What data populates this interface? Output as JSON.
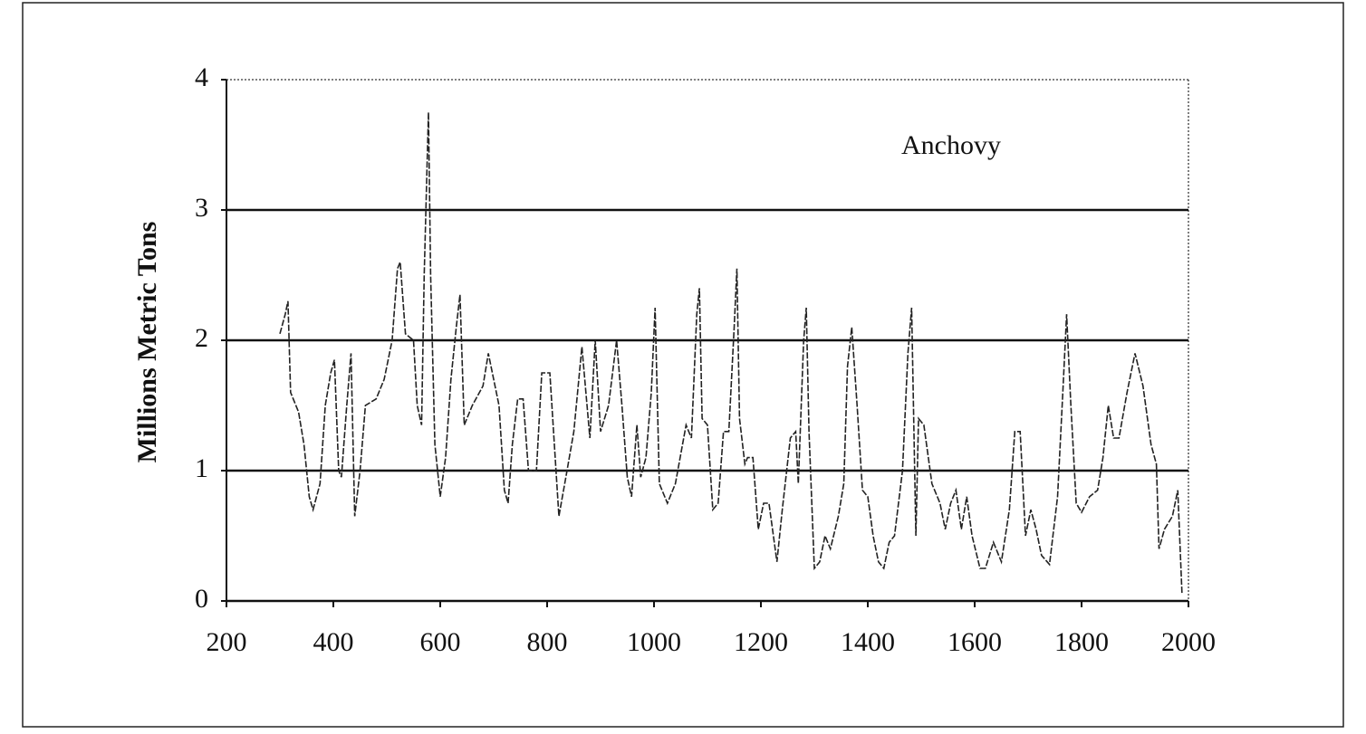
{
  "chart_data": {
    "type": "line",
    "ylabel": "Millions Metric Tons",
    "annotation": "Anchovy",
    "x": [
      300,
      310,
      315,
      320,
      335,
      345,
      355,
      362,
      375,
      385,
      395,
      402,
      410,
      415,
      425,
      433,
      440,
      450,
      460,
      480,
      495,
      510,
      520,
      525,
      535,
      550,
      557,
      565,
      570,
      575,
      578,
      582,
      590,
      600,
      610,
      620,
      630,
      637,
      645,
      660,
      680,
      690,
      700,
      710,
      720,
      727,
      735,
      745,
      755,
      765,
      780,
      790,
      805,
      815,
      822,
      835,
      850,
      865,
      880,
      890,
      900,
      915,
      930,
      940,
      950,
      958,
      968,
      975,
      985,
      995,
      1002,
      1010,
      1025,
      1040,
      1060,
      1070,
      1080,
      1085,
      1090,
      1100,
      1110,
      1120,
      1130,
      1140,
      1150,
      1155,
      1160,
      1170,
      1175,
      1185,
      1195,
      1205,
      1215,
      1230,
      1240,
      1255,
      1265,
      1270,
      1280,
      1285,
      1290,
      1300,
      1310,
      1320,
      1330,
      1345,
      1355,
      1362,
      1370,
      1380,
      1390,
      1400,
      1410,
      1420,
      1430,
      1440,
      1450,
      1465,
      1475,
      1482,
      1490,
      1495,
      1505,
      1520,
      1535,
      1545,
      1555,
      1565,
      1575,
      1585,
      1595,
      1610,
      1620,
      1635,
      1650,
      1665,
      1675,
      1685,
      1695,
      1705,
      1715,
      1725,
      1740,
      1755,
      1765,
      1772,
      1780,
      1790,
      1800,
      1815,
      1830,
      1840,
      1850,
      1860,
      1870,
      1885,
      1900,
      1915,
      1930,
      1940,
      1945,
      1955,
      1970,
      1980,
      1988
    ],
    "values": [
      2.05,
      2.2,
      2.3,
      1.6,
      1.45,
      1.2,
      0.8,
      0.7,
      0.9,
      1.5,
      1.75,
      1.85,
      1.0,
      0.95,
      1.5,
      1.9,
      0.65,
      1.0,
      1.5,
      1.55,
      1.7,
      2.0,
      2.55,
      2.6,
      2.05,
      2.0,
      1.5,
      1.35,
      2.5,
      3.3,
      3.75,
      2.5,
      1.2,
      0.8,
      1.1,
      1.7,
      2.1,
      2.35,
      1.35,
      1.5,
      1.65,
      1.9,
      1.7,
      1.5,
      0.85,
      0.75,
      1.2,
      1.55,
      1.55,
      1.0,
      1.0,
      1.75,
      1.75,
      1.1,
      0.65,
      0.95,
      1.3,
      1.95,
      1.25,
      2.0,
      1.3,
      1.5,
      2.0,
      1.5,
      0.95,
      0.8,
      1.35,
      0.95,
      1.1,
      1.6,
      2.25,
      0.9,
      0.75,
      0.9,
      1.35,
      1.25,
      2.2,
      2.4,
      1.4,
      1.35,
      0.7,
      0.75,
      1.3,
      1.3,
      2.1,
      2.55,
      1.4,
      1.05,
      1.1,
      1.1,
      0.55,
      0.75,
      0.75,
      0.3,
      0.7,
      1.25,
      1.3,
      0.9,
      2.0,
      2.25,
      1.3,
      0.25,
      0.3,
      0.5,
      0.4,
      0.65,
      0.9,
      1.8,
      2.1,
      1.5,
      0.85,
      0.8,
      0.5,
      0.3,
      0.25,
      0.45,
      0.5,
      1.0,
      1.9,
      2.25,
      0.5,
      1.4,
      1.35,
      0.9,
      0.75,
      0.55,
      0.75,
      0.85,
      0.55,
      0.8,
      0.5,
      0.25,
      0.25,
      0.45,
      0.3,
      0.7,
      1.3,
      1.3,
      0.5,
      0.7,
      0.55,
      0.35,
      0.28,
      0.8,
      1.6,
      2.2,
      1.5,
      0.75,
      0.68,
      0.8,
      0.85,
      1.1,
      1.5,
      1.25,
      1.25,
      1.6,
      1.9,
      1.65,
      1.2,
      1.05,
      0.4,
      0.55,
      0.65,
      0.85,
      0.05
    ],
    "color": "#222222",
    "xlim": [
      200,
      2000
    ],
    "xticks": [
      200,
      400,
      600,
      800,
      1000,
      1200,
      1400,
      1600,
      1800,
      2000
    ],
    "ylim": [
      0,
      4
    ],
    "yticks": [
      0,
      1,
      2,
      3,
      4
    ],
    "grid": true
  }
}
